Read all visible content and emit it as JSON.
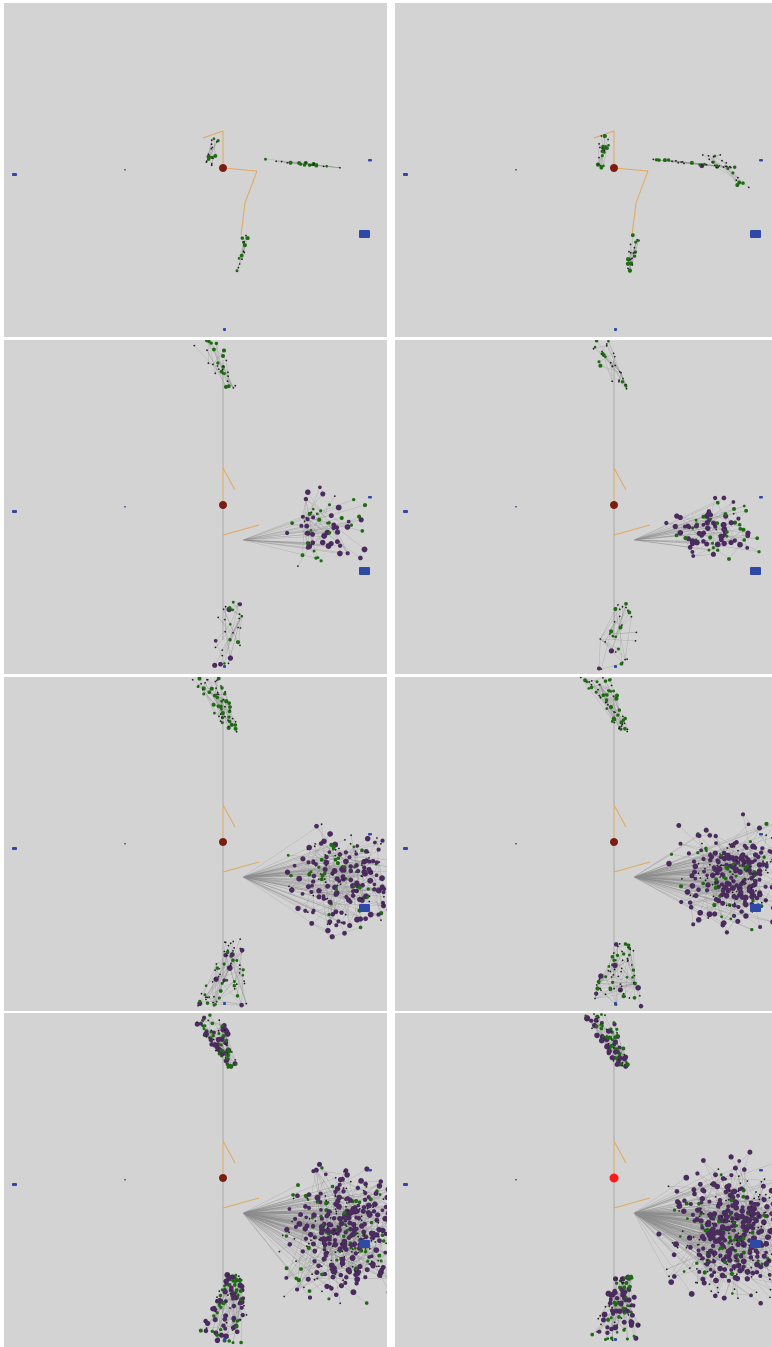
{
  "figure": {
    "layout": {
      "rows": 4,
      "columns": 2
    },
    "background_color": "#d3d3d3",
    "colors": {
      "edge": "#8c8c8c",
      "highlight_edge": "#e0a85c",
      "central_node": "#7a1e14",
      "central_node_active": "#ff1a1a",
      "green_node": "#1f6b14",
      "purple_node": "#4a2b5e",
      "blue_marker": "#2e4aa6",
      "black_node": "#222222"
    },
    "panels": [
      {
        "stage": 1,
        "column": "left"
      },
      {
        "stage": 2,
        "column": "right"
      },
      {
        "stage": 3,
        "column": "left"
      },
      {
        "stage": 4,
        "column": "right"
      },
      {
        "stage": 5,
        "column": "left"
      },
      {
        "stage": 6,
        "column": "right"
      },
      {
        "stage": 7,
        "column": "left"
      },
      {
        "stage": 8,
        "column": "right",
        "central_node_active": true
      }
    ]
  }
}
